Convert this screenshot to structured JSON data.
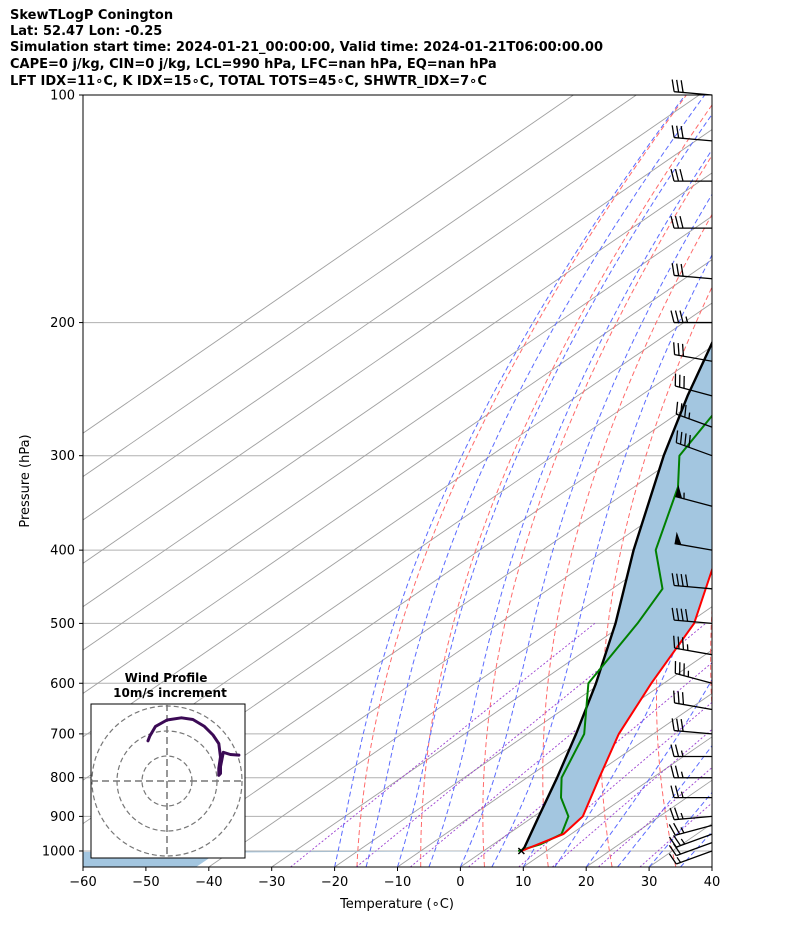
{
  "header": {
    "line1": "SkewTLogP Conington",
    "line2": "Lat: 52.47   Lon: -0.25",
    "line3": "Simulation start time: 2024-01-21_00:00:00, Valid time: 2024-01-21T06:00:00.00",
    "line4": "CAPE=0 j/kg, CIN=0 j/kg, LCL=990 hPa, LFC=nan hPa, EQ=nan hPa",
    "line5": "LFT IDX=11∘C, K IDX=15∘C, TOTAL TOTS=45∘C, SHWTR_IDX=7∘C"
  },
  "colors": {
    "temperature": "#ff0000",
    "dewpoint": "#008000",
    "parcel": "#000000",
    "cape_fill": "#a3c6e0",
    "isotherm_skewed": "#a0a0a0",
    "dry_adiabat": "#ff6b6b",
    "moist_adiabat": "#5b6bff",
    "mixing_ratio": "#9b3fd0",
    "hodograph": "#3b0a55"
  },
  "chart_data": {
    "type": "skewt-logp",
    "xlabel": "Temperature (∘C)",
    "ylabel": "Pressure (hPa)",
    "xlim": [
      -60,
      40
    ],
    "ylim": [
      1050,
      100
    ],
    "x_ticks": [
      "−60",
      "−50",
      "−40",
      "−30",
      "−20",
      "−10",
      "0",
      "10",
      "20",
      "30",
      "40"
    ],
    "y_ticks": [
      "100",
      "200",
      "300",
      "400",
      "500",
      "600",
      "700",
      "800",
      "900",
      "1000"
    ],
    "grid": true,
    "temperature_profile": [
      {
        "p": 1000,
        "t": 6
      },
      {
        "p": 950,
        "t": 8.8
      },
      {
        "p": 900,
        "t": 7.8
      },
      {
        "p": 800,
        "t": 1.5
      },
      {
        "p": 700,
        "t": -5.5
      },
      {
        "p": 600,
        "t": -12
      },
      {
        "p": 500,
        "t": -19
      },
      {
        "p": 400,
        "t": -32
      },
      {
        "p": 350,
        "t": -40
      },
      {
        "p": 300,
        "t": -47
      },
      {
        "p": 250,
        "t": -53
      },
      {
        "p": 220,
        "t": -54
      },
      {
        "p": 200,
        "t": -52
      },
      {
        "p": 170,
        "t": -50.5
      },
      {
        "p": 150,
        "t": -51
      },
      {
        "p": 130,
        "t": -47
      },
      {
        "p": 115,
        "t": -44
      },
      {
        "p": 100,
        "t": -42
      }
    ],
    "dewpoint_profile": [
      {
        "p": 1000,
        "t": 5.5
      },
      {
        "p": 980,
        "t": 7.5
      },
      {
        "p": 950,
        "t": 8.5
      },
      {
        "p": 900,
        "t": 5.5
      },
      {
        "p": 850,
        "t": 0
      },
      {
        "p": 800,
        "t": -4.5
      },
      {
        "p": 700,
        "t": -11
      },
      {
        "p": 600,
        "t": -22
      },
      {
        "p": 500,
        "t": -28
      },
      {
        "p": 450,
        "t": -32
      },
      {
        "p": 400,
        "t": -42
      },
      {
        "p": 330,
        "t": -53
      },
      {
        "p": 300,
        "t": -60
      },
      {
        "p": 250,
        "t": -66
      },
      {
        "p": 200,
        "t": -75
      },
      {
        "p": 170,
        "t": -82
      },
      {
        "p": 150,
        "t": -81
      },
      {
        "p": 130,
        "t": -79
      },
      {
        "p": 100,
        "t": -74
      }
    ],
    "parcel_profile": [
      {
        "p": 1000,
        "t": 6
      },
      {
        "p": 990,
        "t": 5.7
      },
      {
        "p": 900,
        "t": 0.8
      },
      {
        "p": 800,
        "t": -5.2
      },
      {
        "p": 700,
        "t": -12.3
      },
      {
        "p": 600,
        "t": -20.8
      },
      {
        "p": 500,
        "t": -31.5
      },
      {
        "p": 400,
        "t": -45.5
      },
      {
        "p": 300,
        "t": -62.5
      },
      {
        "p": 250,
        "t": -72.5
      },
      {
        "p": 200,
        "t": -84
      },
      {
        "p": 150,
        "t": -98
      },
      {
        "p": 100,
        "t": -116
      }
    ],
    "wind_barbs": [
      {
        "p": 1000,
        "dir": 250,
        "kt": 15
      },
      {
        "p": 975,
        "dir": 250,
        "kt": 20
      },
      {
        "p": 950,
        "dir": 250,
        "kt": 25
      },
      {
        "p": 925,
        "dir": 255,
        "kt": 25
      },
      {
        "p": 900,
        "dir": 265,
        "kt": 25
      },
      {
        "p": 850,
        "dir": 270,
        "kt": 25
      },
      {
        "p": 800,
        "dir": 270,
        "kt": 25
      },
      {
        "p": 750,
        "dir": 270,
        "kt": 25
      },
      {
        "p": 700,
        "dir": 275,
        "kt": 30
      },
      {
        "p": 650,
        "dir": 280,
        "kt": 30
      },
      {
        "p": 600,
        "dir": 285,
        "kt": 35
      },
      {
        "p": 550,
        "dir": 280,
        "kt": 35
      },
      {
        "p": 500,
        "dir": 275,
        "kt": 40
      },
      {
        "p": 450,
        "dir": 275,
        "kt": 40
      },
      {
        "p": 400,
        "dir": 280,
        "kt": 50
      },
      {
        "p": 350,
        "dir": 285,
        "kt": 55
      },
      {
        "p": 300,
        "dir": 290,
        "kt": 40
      },
      {
        "p": 275,
        "dir": 290,
        "kt": 35
      },
      {
        "p": 250,
        "dir": 285,
        "kt": 30
      },
      {
        "p": 225,
        "dir": 280,
        "kt": 30
      },
      {
        "p": 200,
        "dir": 270,
        "kt": 35
      },
      {
        "p": 175,
        "dir": 275,
        "kt": 30
      },
      {
        "p": 150,
        "dir": 270,
        "kt": 30
      },
      {
        "p": 130,
        "dir": 270,
        "kt": 30
      },
      {
        "p": 115,
        "dir": 275,
        "kt": 30
      },
      {
        "p": 100,
        "dir": 275,
        "kt": 30
      }
    ],
    "hodograph": {
      "title": "Wind Profile",
      "subtitle": "10m/s increment",
      "ring_increment_ms": 10,
      "rings": 3,
      "points": [
        {
          "u": 12.5,
          "v": 4.5
        },
        {
          "u": 11.0,
          "v": 4.6
        },
        {
          "u": 9.8,
          "v": 5.0
        },
        {
          "u": 9.3,
          "v": 2.5
        },
        {
          "u": 9.3,
          "v": 1.3
        },
        {
          "u": 9.0,
          "v": 1.0
        },
        {
          "u": 9.0,
          "v": 2.2
        },
        {
          "u": 9.3,
          "v": 4.2
        },
        {
          "u": 9.0,
          "v": 6.5
        },
        {
          "u": 8.0,
          "v": 8.0
        },
        {
          "u": 6.5,
          "v": 9.5
        },
        {
          "u": 4.5,
          "v": 10.7
        },
        {
          "u": 2.5,
          "v": 11.0
        },
        {
          "u": 0.0,
          "v": 10.6
        },
        {
          "u": -2.0,
          "v": 9.5
        },
        {
          "u": -3.0,
          "v": 7.8
        },
        {
          "u": -3.3,
          "v": 7.0
        }
      ]
    }
  }
}
